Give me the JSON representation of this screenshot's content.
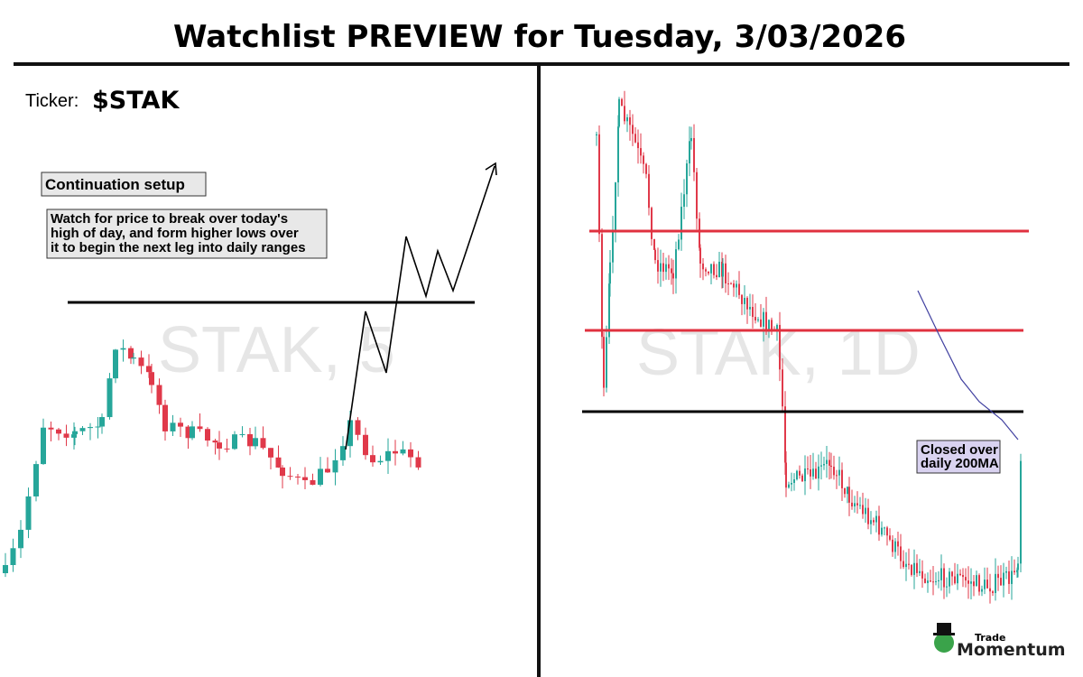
{
  "header": {
    "title": "Watchlist PREVIEW for Tuesday, 3/03/2026"
  },
  "ticker": {
    "label": "Ticker:",
    "symbol": "$STAK"
  },
  "left_panel": {
    "watermark": "STAK, 5",
    "setup": "Continuation setup",
    "note_lines": [
      "Watch for price to break over today's",
      "high of day, and form higher lows over",
      "it to begin the next leg into daily ranges"
    ]
  },
  "right_panel": {
    "watermark": "STAK, 1D",
    "annotation_lines": [
      "Closed over",
      "daily 200MA"
    ]
  },
  "logo": {
    "small": "Trade",
    "big": "Momentum"
  }
}
